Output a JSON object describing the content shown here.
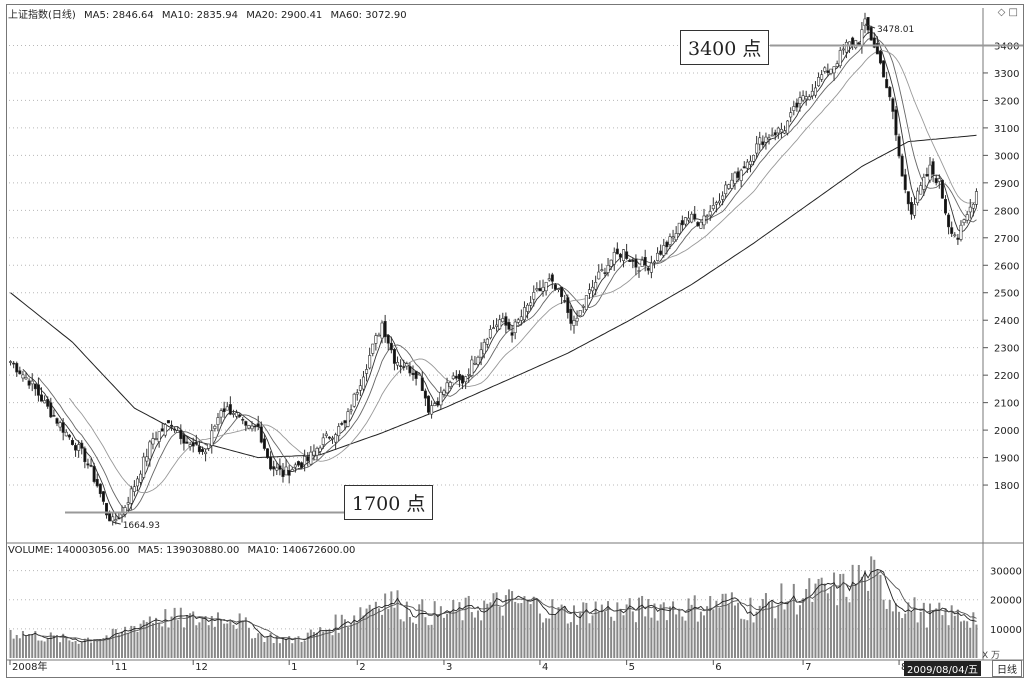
{
  "header": {
    "title": "上证指数(日线)",
    "ma5": "MA5: 2846.64",
    "ma10": "MA10: 2835.94",
    "ma20": "MA20: 2900.41",
    "ma60": "MA60: 3072.90"
  },
  "window_controls": "◇ □",
  "annotations": {
    "high_callout": "3400 点",
    "low_callout": "1700 点",
    "high_mark": "3478.01",
    "low_mark": "1664.93"
  },
  "volume_header": {
    "volume": "VOLUME: 140003056.00",
    "ma5": "MA5: 139030880.00",
    "ma10": "MA10: 140672600.00"
  },
  "volume_unit": "X 万",
  "selected_date": "2009/08/04/五",
  "period_label": "日线",
  "colors": {
    "up": "#555555",
    "down": "#111111",
    "grid": "#b8b8b8",
    "callout_line": "#999999"
  },
  "chart_data": [
    {
      "type": "candlestick",
      "title": "上证指数(日线)",
      "x_labels": [
        "2008年",
        "11",
        "12",
        "1",
        "2",
        "3",
        "4",
        "5",
        "6",
        "7",
        "8"
      ],
      "y_ticks": [
        1800,
        1900,
        2000,
        2100,
        2200,
        2300,
        2400,
        2500,
        2600,
        2700,
        2800,
        2900,
        3000,
        3100,
        3200,
        3300,
        3400
      ],
      "ylim": [
        1600,
        3500
      ],
      "grid": true,
      "series_ma": [
        "MA5",
        "MA10",
        "MA20",
        "MA60"
      ],
      "price_path": [
        [
          0,
          2250
        ],
        [
          6,
          2180
        ],
        [
          12,
          2080
        ],
        [
          18,
          1990
        ],
        [
          24,
          1900
        ],
        [
          28,
          1800
        ],
        [
          31,
          1700
        ],
        [
          33,
          1664.93
        ],
        [
          36,
          1700
        ],
        [
          40,
          1800
        ],
        [
          46,
          1970
        ],
        [
          52,
          2030
        ],
        [
          58,
          1940
        ],
        [
          63,
          1920
        ],
        [
          68,
          2080
        ],
        [
          72,
          2070
        ],
        [
          76,
          2000
        ],
        [
          80,
          2010
        ],
        [
          84,
          1870
        ],
        [
          88,
          1840
        ],
        [
          92,
          1870
        ],
        [
          96,
          1890
        ],
        [
          100,
          1950
        ],
        [
          104,
          1990
        ],
        [
          108,
          2020
        ],
        [
          112,
          2150
        ],
        [
          117,
          2300
        ],
        [
          120,
          2390
        ],
        [
          124,
          2260
        ],
        [
          128,
          2230
        ],
        [
          132,
          2200
        ],
        [
          135,
          2080
        ],
        [
          138,
          2110
        ],
        [
          142,
          2180
        ],
        [
          146,
          2180
        ],
        [
          150,
          2260
        ],
        [
          154,
          2350
        ],
        [
          158,
          2400
        ],
        [
          162,
          2360
        ],
        [
          166,
          2430
        ],
        [
          170,
          2500
        ],
        [
          174,
          2540
        ],
        [
          178,
          2480
        ],
        [
          182,
          2380
        ],
        [
          186,
          2480
        ],
        [
          190,
          2560
        ],
        [
          194,
          2620
        ],
        [
          198,
          2650
        ],
        [
          202,
          2600
        ],
        [
          206,
          2600
        ],
        [
          210,
          2650
        ],
        [
          214,
          2700
        ],
        [
          218,
          2780
        ],
        [
          222,
          2760
        ],
        [
          226,
          2800
        ],
        [
          230,
          2870
        ],
        [
          234,
          2920
        ],
        [
          238,
          2980
        ],
        [
          242,
          3050
        ],
        [
          246,
          3080
        ],
        [
          250,
          3100
        ],
        [
          254,
          3180
        ],
        [
          258,
          3230
        ],
        [
          262,
          3290
        ],
        [
          266,
          3330
        ],
        [
          270,
          3400
        ],
        [
          274,
          3420
        ],
        [
          276,
          3478.01
        ],
        [
          279,
          3400
        ],
        [
          282,
          3300
        ],
        [
          285,
          3150
        ],
        [
          288,
          2920
        ],
        [
          291,
          2800
        ],
        [
          294,
          2880
        ],
        [
          297,
          2950
        ],
        [
          300,
          2900
        ],
        [
          303,
          2750
        ],
        [
          306,
          2700
        ],
        [
          309,
          2780
        ],
        [
          312,
          2870
        ]
      ],
      "ma60_path": [
        [
          0,
          2500
        ],
        [
          20,
          2320
        ],
        [
          40,
          2080
        ],
        [
          60,
          1960
        ],
        [
          80,
          1900
        ],
        [
          100,
          1910
        ],
        [
          120,
          1990
        ],
        [
          140,
          2080
        ],
        [
          160,
          2180
        ],
        [
          180,
          2280
        ],
        [
          200,
          2400
        ],
        [
          220,
          2530
        ],
        [
          240,
          2680
        ],
        [
          260,
          2840
        ],
        [
          275,
          2960
        ],
        [
          290,
          3050
        ],
        [
          312,
          3072.9
        ]
      ],
      "low_value": 1664.93,
      "high_value": 3478.01,
      "reference_levels": [
        1700,
        3400
      ]
    },
    {
      "type": "bar",
      "title": "VOLUME",
      "y_ticks": [
        10000,
        20000,
        30000
      ],
      "ylim": [
        0,
        35000
      ],
      "unit": "万",
      "volume_path": [
        [
          0,
          9000
        ],
        [
          20,
          6000
        ],
        [
          35,
          8000
        ],
        [
          45,
          14000
        ],
        [
          60,
          13000
        ],
        [
          70,
          15000
        ],
        [
          80,
          8000
        ],
        [
          90,
          6000
        ],
        [
          100,
          9000
        ],
        [
          110,
          14000
        ],
        [
          120,
          21000
        ],
        [
          130,
          16000
        ],
        [
          140,
          15000
        ],
        [
          150,
          17000
        ],
        [
          160,
          19000
        ],
        [
          170,
          18000
        ],
        [
          180,
          15000
        ],
        [
          190,
          17000
        ],
        [
          200,
          16000
        ],
        [
          210,
          18000
        ],
        [
          220,
          17000
        ],
        [
          230,
          19000
        ],
        [
          240,
          17000
        ],
        [
          250,
          20000
        ],
        [
          260,
          22000
        ],
        [
          270,
          24000
        ],
        [
          276,
          30000
        ],
        [
          285,
          20000
        ],
        [
          295,
          15000
        ],
        [
          312,
          14000
        ]
      ]
    }
  ]
}
